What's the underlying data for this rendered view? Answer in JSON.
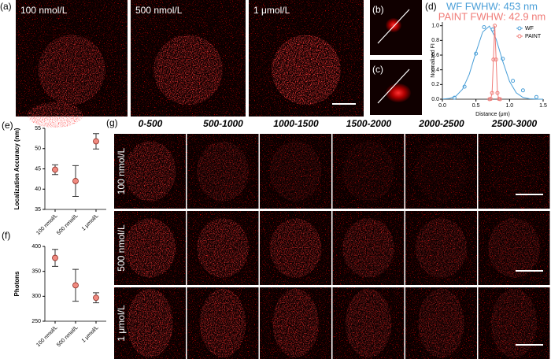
{
  "figure": {
    "panels": [
      "(a)",
      "(b)",
      "(c)",
      "(d)",
      "(e)",
      "(f)",
      "(g)"
    ],
    "a_labels": [
      "100 nmol/L",
      "500 nmol/L",
      "1 μmol/L"
    ],
    "g_columns": [
      "0-500",
      "500-1000",
      "1000-1500",
      "1500-2000",
      "2000-2500",
      "2500-3000"
    ],
    "g_rows": [
      "100 nmol/L",
      "500 nmol/L",
      "1 μmol/L"
    ]
  },
  "chart_data": [
    {
      "type": "line",
      "annotations": [
        "WF FWHW: 453 nm",
        "PAINT FWHW: 42.9 nm"
      ],
      "x_label": "Distance (μm)",
      "y_label": "Normalized FI",
      "xlim": [
        0,
        1.5
      ],
      "xticks": [
        {
          "value": 0,
          "label": "0.0"
        },
        {
          "value": 0.5,
          "label": "0.5"
        },
        {
          "value": 1,
          "label": "1.0"
        },
        {
          "value": 1.5,
          "label": "1.5"
        }
      ],
      "ylim": [
        0,
        1.05
      ],
      "yticks": [
        {
          "value": 0,
          "label": "0.0"
        },
        {
          "value": 0.2,
          "label": "0.2"
        },
        {
          "value": 0.4,
          "label": "0.4"
        },
        {
          "value": 0.6,
          "label": "0.6"
        },
        {
          "value": 0.8,
          "label": "0.8"
        },
        {
          "value": 1,
          "label": "1.0"
        }
      ],
      "legend": "upper right",
      "series": [
        {
          "name": "WF",
          "color": "#4a9fd8",
          "x": [
            0.18,
            0.33,
            0.5,
            0.62,
            0.75,
            0.9,
            1.05,
            1.2,
            1.4
          ],
          "values": [
            0.02,
            0.17,
            0.62,
            0.98,
            0.95,
            0.55,
            0.25,
            0.12,
            0.03
          ],
          "fit_x": [
            0,
            0.1,
            0.2,
            0.3,
            0.4,
            0.5,
            0.6,
            0.7,
            0.8,
            0.9,
            1.0,
            1.1,
            1.2,
            1.3,
            1.4,
            1.5
          ],
          "fit": [
            0.002,
            0.009,
            0.041,
            0.135,
            0.338,
            0.638,
            0.915,
            0.995,
            0.819,
            0.512,
            0.242,
            0.087,
            0.024,
            0.005,
            0.001,
            0
          ]
        },
        {
          "name": "PAINT",
          "color": "#f07c78",
          "x": [
            0.7,
            0.72,
            0.74,
            0.76,
            0.78,
            0.8,
            0.82,
            0.84,
            0.86
          ],
          "values": [
            0,
            0.004,
            0.085,
            0.54,
            1,
            0.54,
            0.085,
            0.004,
            0
          ]
        }
      ]
    },
    {
      "type": "errorbar",
      "y_label": "Localization Accuracy (nm)",
      "categories": [
        "100 nmol/L",
        "500 nmol/L",
        "1 μmol/L"
      ],
      "values": [
        44.8,
        42,
        51.8
      ],
      "errors": [
        1.2,
        3.8,
        1.9
      ],
      "ylim": [
        35,
        55
      ],
      "yticks": [
        35,
        40,
        45,
        50,
        55
      ],
      "color": "#f08a80"
    },
    {
      "type": "errorbar",
      "y_label": "Photons",
      "categories": [
        "100 nmol/L",
        "500 nmol/L",
        "1 μmol/L"
      ],
      "values": [
        377,
        322,
        297
      ],
      "errors": [
        17,
        32,
        10
      ],
      "ylim": [
        250,
        400
      ],
      "yticks": [
        250,
        300,
        350,
        400
      ],
      "color": "#f08a80"
    }
  ]
}
